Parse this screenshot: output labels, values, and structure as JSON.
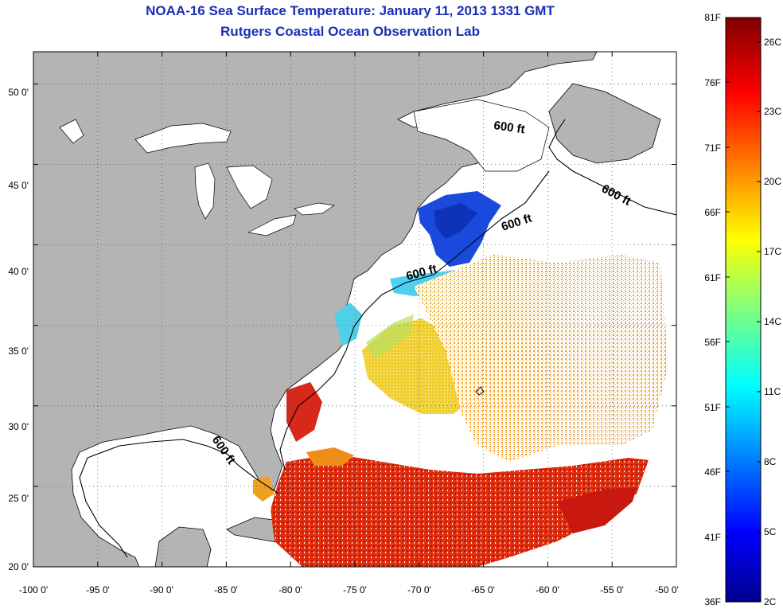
{
  "title": "NOAA-16 Sea Surface Temperature:  January 11, 2013 1331 GMT",
  "subtitle": "Rutgers Coastal Ocean Observation Lab",
  "map": {
    "lon_range": [
      -100,
      -50
    ],
    "lat_range": [
      20,
      52
    ],
    "x_ticks": [
      "-100 0'",
      "-95 0'",
      "-90 0'",
      "-85 0'",
      "-80 0'",
      "-75 0'",
      "-70 0'",
      "-65 0'",
      "-60 0'",
      "-55 0'",
      "-50 0'"
    ],
    "y_ticks": [
      "50 0'",
      "45 0'",
      "40 0'",
      "35 0'",
      "30 0'",
      "25 0'",
      "20 0'"
    ],
    "land_color": "#b4b4b4",
    "grid": "dotted",
    "contour_labels": [
      "600 ft",
      "600 ft",
      "600 ft",
      "600 ft",
      "600 ft"
    ]
  },
  "colorbar": {
    "fahrenheit_labels": [
      "81F",
      "76F",
      "71F",
      "66F",
      "61F",
      "56F",
      "51F",
      "46F",
      "41F",
      "36F"
    ],
    "celsius_labels": [
      "26C",
      "23C",
      "20C",
      "17C",
      "14C",
      "11C",
      "8C",
      "5C",
      "2C"
    ],
    "colormap": "jet",
    "range_c": [
      2,
      27.2
    ]
  }
}
